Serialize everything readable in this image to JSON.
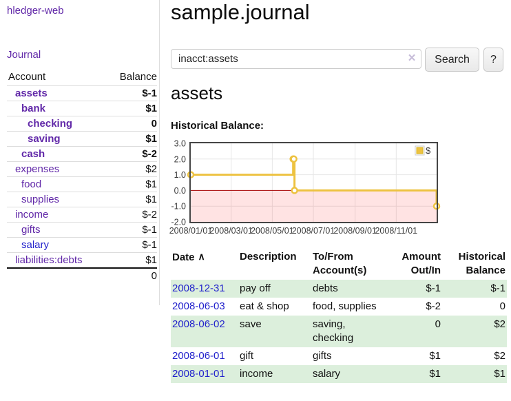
{
  "sidebar": {
    "brand": "hledger-web",
    "journal_link": "Journal",
    "accounts": {
      "col_account": "Account",
      "col_balance": "Balance",
      "rows": [
        {
          "name": "assets",
          "depth": 1,
          "balance": "$-1",
          "bold": true,
          "balance_style": "negative"
        },
        {
          "name": "bank",
          "depth": 2,
          "balance": "$1",
          "bold": true,
          "balance_style": "normal"
        },
        {
          "name": "checking",
          "depth": 3,
          "balance": "0",
          "bold": true,
          "balance_style": "normal"
        },
        {
          "name": "saving",
          "depth": 3,
          "balance": "$1",
          "bold": true,
          "balance_style": "normal"
        },
        {
          "name": "cash",
          "depth": 2,
          "balance": "$-2",
          "bold": true,
          "balance_style": "negative"
        },
        {
          "name": "expenses",
          "depth": 1,
          "balance": "$2",
          "bold": false,
          "balance_style": "normal"
        },
        {
          "name": "food",
          "depth": 2,
          "balance": "$1",
          "bold": false,
          "balance_style": "normal"
        },
        {
          "name": "supplies",
          "depth": 2,
          "balance": "$1",
          "bold": false,
          "balance_style": "normal"
        },
        {
          "name": "income",
          "depth": 1,
          "balance": "$-2",
          "bold": false,
          "balance_style": "negative-dim"
        },
        {
          "name": "gifts",
          "depth": 2,
          "balance": "$-1",
          "bold": false,
          "balance_style": "negative-dim"
        },
        {
          "name": "salary",
          "depth": 2,
          "balance": "$-1",
          "bold": false,
          "balance_style": "negative-dim",
          "link_color": "blue"
        },
        {
          "name": "liabilities:debts",
          "depth": 1,
          "balance": "$1",
          "bold": false,
          "balance_style": "normal"
        }
      ],
      "total": "0"
    }
  },
  "main": {
    "title": "sample.journal",
    "search": {
      "value": "inacct:assets",
      "clear_icon": "×",
      "search_button": "Search",
      "help_button": "?"
    },
    "account_heading": "assets",
    "chart_heading": "Historical Balance:"
  },
  "register": {
    "headers": {
      "date": "Date",
      "description": "Description",
      "accounts": "To/From Account(s)",
      "amount": "Amount Out/In",
      "balance": "Historical Balance"
    },
    "sort_icon": "∧",
    "rows": [
      {
        "date": "2008-12-31",
        "description": "pay off",
        "accounts": "debts",
        "amount": "$-1",
        "balance": "$-1",
        "amount_style": "negative",
        "balance_style": "negative"
      },
      {
        "date": "2008-06-03",
        "description": "eat & shop",
        "accounts": "food, supplies",
        "amount": "$-2",
        "balance": "0",
        "amount_style": "negative",
        "balance_style": "normal"
      },
      {
        "date": "2008-06-02",
        "description": "save",
        "accounts": "saving, checking",
        "amount": "0",
        "balance": "$2",
        "amount_style": "normal",
        "balance_style": "normal"
      },
      {
        "date": "2008-06-01",
        "description": "gift",
        "accounts": "gifts",
        "amount": "$1",
        "balance": "$2",
        "amount_style": "normal",
        "balance_style": "normal"
      },
      {
        "date": "2008-01-01",
        "description": "income",
        "accounts": "salary",
        "amount": "$1",
        "balance": "$1",
        "amount_style": "normal",
        "balance_style": "normal"
      }
    ]
  },
  "chart_data": {
    "type": "line",
    "title": "Historical Balance",
    "legend": "$",
    "legend_position": "top-right",
    "grid": true,
    "step": true,
    "x_range": [
      "2008-01-01",
      "2008-12-31"
    ],
    "ylim": [
      -2.0,
      3.0
    ],
    "y_ticks": [
      3.0,
      2.0,
      1.0,
      0.0,
      -1.0,
      -2.0
    ],
    "x_ticks": [
      "2008/01/01",
      "2008/03/01",
      "2008/05/01",
      "2008/07/01",
      "2008/09/01",
      "2008/11/01"
    ],
    "negative_region_shaded": true,
    "series": [
      {
        "name": "$",
        "color": "#edc240",
        "points": [
          [
            "2008-01-01",
            1
          ],
          [
            "2008-06-01",
            2
          ],
          [
            "2008-06-02",
            2
          ],
          [
            "2008-06-03",
            0
          ],
          [
            "2008-12-31",
            -1
          ]
        ]
      }
    ]
  },
  "colors": {
    "link_purple": "#6128a8",
    "link_blue": "#2222cc",
    "negative": "#8e1f1f",
    "negative_dim": "#bd7575",
    "row_stripe_green": "#dcefdc",
    "chart_line_gold": "#edc240",
    "chart_zero_line": "#a40000",
    "chart_negative_fill": "#fbe3e3",
    "chart_border": "#454545",
    "divider": "#dddddd"
  }
}
